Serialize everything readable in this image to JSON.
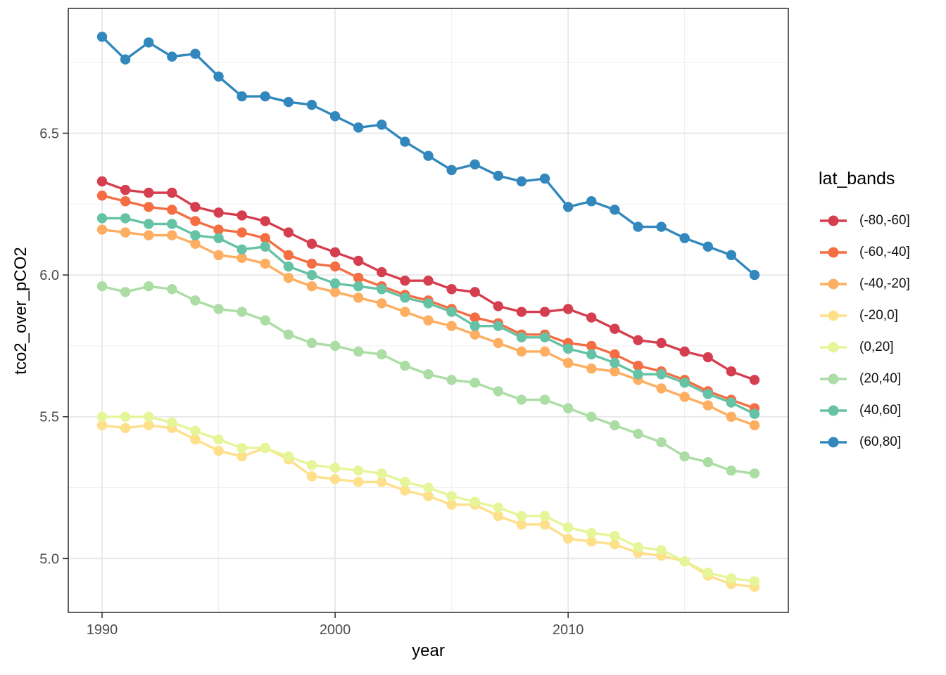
{
  "chart": {
    "y_axis_title": "tco2_over_pCO2",
    "x_axis_title": "year",
    "legend_title": "lat_bands"
  },
  "chart_data": {
    "type": "line",
    "title": "",
    "xlabel": "year",
    "ylabel": "tco2_over_pCO2",
    "legend_title": "lat_bands",
    "legend_position": "right",
    "grid": true,
    "xlim": [
      1988.55,
      2019.45
    ],
    "ylim": [
      4.81,
      6.94
    ],
    "x_ticks": [
      1990,
      2000,
      2010
    ],
    "x_tick_labels": [
      "1990",
      "2000",
      "2010"
    ],
    "x_minor_ticks": [
      1995,
      2005,
      2015
    ],
    "y_ticks": [
      6.5,
      6.0,
      5.5,
      5.0
    ],
    "y_tick_labels": [
      "6.5",
      "6.0",
      "5.5",
      "5.0"
    ],
    "y_minor_ticks": [
      6.75,
      6.25,
      5.75,
      5.25
    ],
    "x": [
      1990,
      1991,
      1992,
      1993,
      1994,
      1995,
      1996,
      1997,
      1998,
      1999,
      2000,
      2001,
      2002,
      2003,
      2004,
      2005,
      2006,
      2007,
      2008,
      2009,
      2010,
      2011,
      2012,
      2013,
      2014,
      2015,
      2016,
      2017,
      2018
    ],
    "series": [
      {
        "name": "(-80,-60]",
        "color": "#d53e4f",
        "values": [
          6.33,
          6.3,
          6.29,
          6.29,
          6.24,
          6.22,
          6.21,
          6.19,
          6.15,
          6.11,
          6.08,
          6.05,
          6.01,
          5.98,
          5.98,
          5.95,
          5.94,
          5.89,
          5.87,
          5.87,
          5.88,
          5.85,
          5.81,
          5.77,
          5.76,
          5.73,
          5.71,
          5.66,
          5.63
        ]
      },
      {
        "name": "(-60,-40]",
        "color": "#f46d43",
        "values": [
          6.28,
          6.26,
          6.24,
          6.23,
          6.19,
          6.16,
          6.15,
          6.13,
          6.07,
          6.04,
          6.03,
          5.99,
          5.96,
          5.93,
          5.91,
          5.88,
          5.85,
          5.83,
          5.79,
          5.79,
          5.76,
          5.75,
          5.72,
          5.68,
          5.66,
          5.63,
          5.59,
          5.56,
          5.53
        ]
      },
      {
        "name": "(-40,-20]",
        "color": "#fdae61",
        "values": [
          6.16,
          6.15,
          6.14,
          6.14,
          6.11,
          6.07,
          6.06,
          6.04,
          5.99,
          5.96,
          5.94,
          5.92,
          5.9,
          5.87,
          5.84,
          5.82,
          5.79,
          5.76,
          5.73,
          5.73,
          5.69,
          5.67,
          5.66,
          5.63,
          5.6,
          5.57,
          5.54,
          5.5,
          5.47
        ]
      },
      {
        "name": "(-20,0]",
        "color": "#fee08b",
        "values": [
          5.47,
          5.46,
          5.47,
          5.46,
          5.42,
          5.38,
          5.36,
          5.39,
          5.35,
          5.29,
          5.28,
          5.27,
          5.27,
          5.24,
          5.22,
          5.19,
          5.19,
          5.15,
          5.12,
          5.12,
          5.07,
          5.06,
          5.05,
          5.02,
          5.01,
          4.99,
          4.94,
          4.91,
          4.9
        ]
      },
      {
        "name": "(0,20]",
        "color": "#e6f598",
        "values": [
          5.5,
          5.5,
          5.5,
          5.48,
          5.45,
          5.42,
          5.39,
          5.39,
          5.36,
          5.33,
          5.32,
          5.31,
          5.3,
          5.27,
          5.25,
          5.22,
          5.2,
          5.18,
          5.15,
          5.15,
          5.11,
          5.09,
          5.08,
          5.04,
          5.03,
          4.99,
          4.95,
          4.93,
          4.92
        ]
      },
      {
        "name": "(20,40]",
        "color": "#abdda4",
        "values": [
          5.96,
          5.94,
          5.96,
          5.95,
          5.91,
          5.88,
          5.87,
          5.84,
          5.79,
          5.76,
          5.75,
          5.73,
          5.72,
          5.68,
          5.65,
          5.63,
          5.62,
          5.59,
          5.56,
          5.56,
          5.53,
          5.5,
          5.47,
          5.44,
          5.41,
          5.36,
          5.34,
          5.31,
          5.3
        ]
      },
      {
        "name": "(40,60]",
        "color": "#66c2a5",
        "values": [
          6.2,
          6.2,
          6.18,
          6.18,
          6.14,
          6.13,
          6.09,
          6.1,
          6.03,
          6.0,
          5.97,
          5.96,
          5.95,
          5.92,
          5.9,
          5.87,
          5.82,
          5.82,
          5.78,
          5.78,
          5.74,
          5.72,
          5.69,
          5.65,
          5.65,
          5.62,
          5.58,
          5.55,
          5.51
        ]
      },
      {
        "name": "(60,80]",
        "color": "#3288bd",
        "values": [
          6.84,
          6.76,
          6.82,
          6.77,
          6.78,
          6.7,
          6.63,
          6.63,
          6.61,
          6.6,
          6.56,
          6.52,
          6.53,
          6.47,
          6.42,
          6.37,
          6.39,
          6.35,
          6.33,
          6.34,
          6.24,
          6.26,
          6.23,
          6.17,
          6.17,
          6.13,
          6.1,
          6.07,
          6.0
        ]
      }
    ]
  },
  "style": {
    "panel_border_color": "#2b2b2b",
    "major_grid_color": "#e6e6e6",
    "minor_grid_color": "#f0f0f0",
    "tick_mark_color": "#2b2b2b",
    "tick_label_color": "#4d4d4d",
    "background_color": "#ffffff"
  }
}
